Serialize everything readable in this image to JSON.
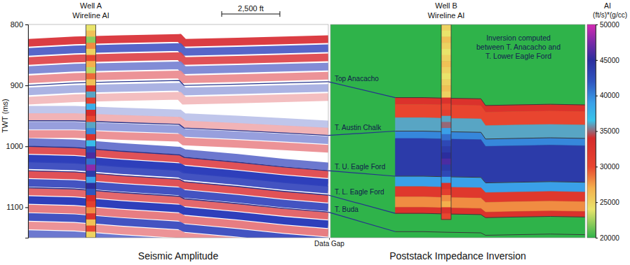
{
  "chart_data": [
    {
      "type": "seismic",
      "title": "Seismic Amplitude",
      "y_label": "TWT (ms)",
      "ylim": [
        800,
        1150
      ],
      "yticks": [
        800,
        900,
        1000,
        1100
      ],
      "xlim": [
        0,
        12900
      ],
      "tick_labels": "y",
      "scale_bar": {
        "value": 2500,
        "label": "2,500 ft"
      },
      "annotation": "Data Gap",
      "x": [
        0,
        2000,
        4000,
        6500,
        6700,
        9000,
        11000,
        12900
      ],
      "reflectors": [
        {
          "amplitude": 0.9,
          "values": [
            830,
            826,
            824,
            822,
            830,
            828,
            826,
            824
          ]
        },
        {
          "amplitude": -0.8,
          "values": [
            845,
            841,
            839,
            837,
            845,
            843,
            841,
            839
          ]
        },
        {
          "amplitude": 0.8,
          "values": [
            860,
            856,
            854,
            852,
            860,
            858,
            856,
            854
          ]
        },
        {
          "amplitude": -0.6,
          "values": [
            875,
            871,
            869,
            867,
            875,
            873,
            871,
            869
          ]
        },
        {
          "amplitude": 0.5,
          "values": [
            890,
            886,
            884,
            882,
            890,
            888,
            886,
            884
          ]
        },
        {
          "amplitude": -0.4,
          "values": [
            910,
            906,
            904,
            902,
            910,
            908,
            906,
            904
          ]
        },
        {
          "amplitude": 0.3,
          "values": [
            925,
            921,
            919,
            917,
            925,
            923,
            921,
            919
          ]
        },
        {
          "amplitude": -0.3,
          "values": [
            940,
            940,
            943,
            946,
            952,
            956,
            960,
            964
          ]
        },
        {
          "amplitude": 0.35,
          "values": [
            952,
            952,
            955,
            958,
            964,
            968,
            972,
            976
          ]
        },
        {
          "amplitude": -0.5,
          "values": [
            966,
            966,
            969,
            972,
            978,
            982,
            986,
            990
          ]
        },
        {
          "amplitude": 0.5,
          "values": [
            980,
            980,
            983,
            986,
            992,
            996,
            1000,
            1004
          ]
        },
        {
          "amplitude": -0.7,
          "values": [
            993,
            995,
            1001,
            1007,
            1011,
            1019,
            1027,
            1033
          ]
        },
        {
          "amplitude": 0.8,
          "values": [
            1006,
            1008,
            1014,
            1020,
            1024,
            1032,
            1040,
            1046
          ]
        },
        {
          "amplitude": -1,
          "values": [
            1020,
            1022,
            1028,
            1034,
            1038,
            1046,
            1054,
            1060
          ]
        },
        {
          "amplitude": -0.9,
          "values": [
            1031,
            1033,
            1039,
            1045,
            1049,
            1057,
            1065,
            1071
          ]
        },
        {
          "amplitude": 0.8,
          "values": [
            1046,
            1048,
            1054,
            1060,
            1064,
            1072,
            1080,
            1086
          ]
        },
        {
          "amplitude": -0.9,
          "values": [
            1060,
            1062,
            1068,
            1074,
            1078,
            1086,
            1094,
            1100
          ]
        },
        {
          "amplitude": 0.7,
          "values": [
            1074,
            1076,
            1082,
            1088,
            1092,
            1100,
            1108,
            1114
          ]
        },
        {
          "amplitude": -1,
          "values": [
            1088,
            1090,
            1096,
            1102,
            1106,
            1114,
            1122,
            1128
          ]
        },
        {
          "amplitude": 0.6,
          "values": [
            1102,
            1104,
            1110,
            1116,
            1120,
            1128,
            1136,
            1142
          ]
        },
        {
          "amplitude": -0.9,
          "values": [
            1116,
            1118,
            1124,
            1130,
            1134,
            1142,
            1150,
            1156
          ]
        },
        {
          "amplitude": 0.5,
          "values": [
            1130,
            1132,
            1138,
            1144,
            1148,
            1156,
            1164,
            1170
          ]
        },
        {
          "amplitude": -0.7,
          "values": [
            1144,
            1146,
            1152,
            1158,
            1162,
            1170,
            1178,
            1184
          ]
        }
      ],
      "series": [
        {
          "name": "Top Anacacho",
          "color": "#26348c",
          "values": [
            900,
            896,
            894,
            892,
            900,
            898,
            896,
            894
          ]
        },
        {
          "name": "T. Austin Chalk",
          "color": "#26348c",
          "values": [
            958,
            958,
            961,
            964,
            970,
            974,
            978,
            982
          ]
        },
        {
          "name": "T. U. Eagle Ford",
          "color": "#26348c",
          "values": [
            1000,
            1002,
            1008,
            1014,
            1018,
            1026,
            1034,
            1040
          ]
        },
        {
          "name": "T. L. Eagle Ford",
          "color": "#26348c",
          "values": [
            1040,
            1042,
            1048,
            1054,
            1058,
            1066,
            1074,
            1080
          ]
        },
        {
          "name": "T. Buda",
          "color": "#26348c",
          "values": [
            1068,
            1070,
            1076,
            1082,
            1086,
            1094,
            1102,
            1108
          ]
        }
      ],
      "well": {
        "name": "Well A",
        "label": "Wireline AI",
        "x": 2700,
        "twt": [
          800,
          810,
          820,
          830,
          840,
          850,
          860,
          870,
          880,
          890,
          900,
          910,
          920,
          930,
          940,
          950,
          960,
          970,
          980,
          990,
          1000,
          1010,
          1020,
          1030,
          1040,
          1050,
          1060,
          1070,
          1080,
          1090,
          1100,
          1110,
          1120,
          1130,
          1140
        ],
        "ai": [
          24000,
          26000,
          22000,
          28000,
          25000,
          30000,
          27000,
          23000,
          29000,
          26000,
          33000,
          36000,
          31000,
          38000,
          34000,
          30000,
          36000,
          40000,
          33000,
          37000,
          43000,
          46000,
          41000,
          48000,
          44000,
          39000,
          45000,
          42000,
          34000,
          31000,
          28000,
          33000,
          26000,
          30000,
          25000
        ]
      }
    },
    {
      "type": "impedance_inversion",
      "title": "Poststack Impedance Inversion",
      "ylim": [
        800,
        1150
      ],
      "xlim": [
        0,
        11000
      ],
      "tick_labels": false,
      "annotation": "Inversion computed between T. Anacacho and T. Lower Eagle Ford",
      "x": [
        2800,
        4000,
        5000,
        6500,
        6700,
        8000,
        9500,
        11000
      ],
      "layers": [
        {
          "ai": 33000,
          "top": [
            920,
            920,
            921,
            922,
            933,
            932,
            931,
            932
          ]
        },
        {
          "ai": 30000,
          "top": [
            931,
            931,
            932,
            933,
            944,
            943,
            942,
            943
          ]
        },
        {
          "ai": 36000,
          "top": [
            953,
            953,
            954,
            955,
            966,
            965,
            964,
            965
          ]
        },
        {
          "ai": 40000,
          "top": [
            975,
            975,
            976,
            977,
            988,
            987,
            986,
            987
          ]
        },
        {
          "ai": 44000,
          "top": [
            987,
            987,
            988,
            989,
            1000,
            999,
            998,
            999
          ]
        },
        {
          "ai": 39000,
          "top": [
            1049,
            1049,
            1050,
            1051,
            1060,
            1059,
            1058,
            1059
          ]
        },
        {
          "ai": 32000,
          "top": [
            1066,
            1066,
            1067,
            1068,
            1076,
            1075,
            1074,
            1075
          ]
        },
        {
          "ai": 28000,
          "top": [
            1083,
            1083,
            1084,
            1085,
            1092,
            1091,
            1090,
            1091
          ]
        },
        {
          "ai": 33000,
          "top": [
            1100,
            1100,
            1101,
            1102,
            1108,
            1107,
            1106,
            1107
          ],
          "bottom": [
            1110,
            1110,
            1111,
            1112,
            1117,
            1116,
            1115,
            1116
          ]
        }
      ],
      "series": [
        {
          "color": "#3a3a3a",
          "values": [
            920,
            920,
            921,
            922,
            933,
            932,
            931,
            932
          ]
        },
        {
          "color": "#3a3a3a",
          "values": [
            975,
            975,
            976,
            977,
            988,
            987,
            986,
            987
          ]
        },
        {
          "color": "#3a3a3a",
          "values": [
            1049,
            1049,
            1050,
            1051,
            1060,
            1059,
            1058,
            1059
          ]
        },
        {
          "color": "#3a3a3a",
          "values": [
            1110,
            1110,
            1111,
            1112,
            1117,
            1116,
            1115,
            1116
          ]
        },
        {
          "color": "#3a3a3a",
          "values": [
            1140,
            1140,
            1141,
            1142,
            1146,
            1145,
            1144,
            1145
          ]
        }
      ],
      "well": {
        "name": "Well B",
        "label": "Wireline AI",
        "x": 5000,
        "twt": [
          800,
          810,
          820,
          830,
          840,
          850,
          860,
          870,
          880,
          890,
          900,
          910,
          920,
          930,
          940,
          950,
          960,
          970,
          980,
          990,
          1000,
          1010,
          1020,
          1030,
          1040,
          1050,
          1060,
          1070,
          1080,
          1090,
          1100,
          1110
        ],
        "ai": [
          25000,
          24000,
          26000,
          25000,
          24000,
          25000,
          26000,
          25000,
          24000,
          25000,
          26000,
          25000,
          33000,
          30000,
          31000,
          36000,
          35000,
          39000,
          41000,
          43000,
          44000,
          45000,
          46000,
          44000,
          43000,
          39000,
          33000,
          31000,
          28000,
          27000,
          33000,
          30000
        ]
      },
      "colorbar": {
        "label": "AI",
        "units": "(ft/s)*(g/cc)",
        "range": [
          20000,
          50000
        ],
        "ticks": [
          20000,
          25000,
          30000,
          35000,
          40000,
          45000,
          50000
        ]
      }
    }
  ]
}
